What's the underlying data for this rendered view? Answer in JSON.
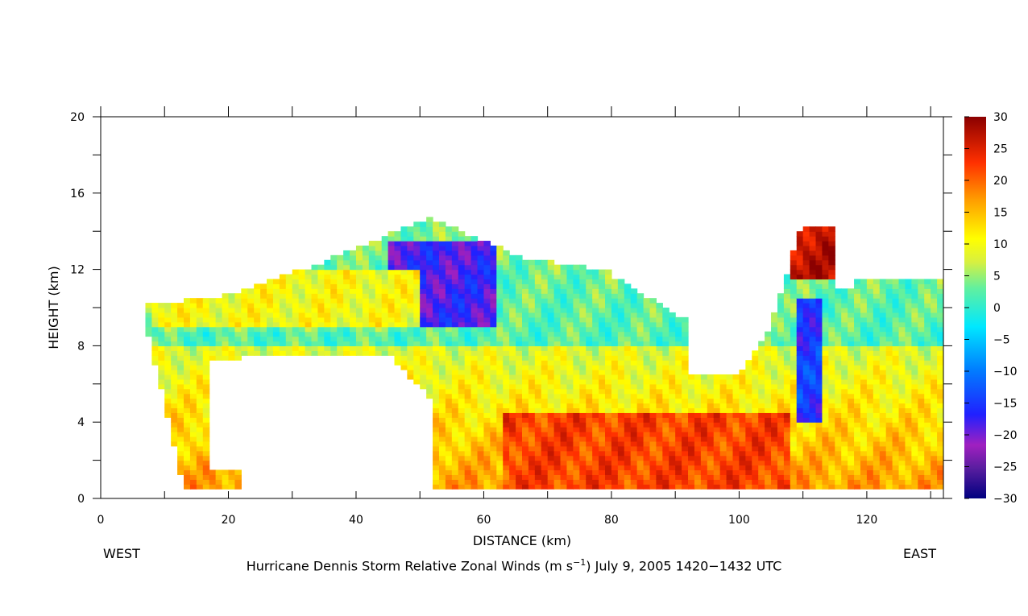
{
  "chart_data": {
    "type": "heatmap",
    "title": "Hurricane Dennis Storm Relative Zonal Winds (m s⁻¹) July 9, 2005 1420–1432 UTC",
    "title_parts": {
      "before": "Hurricane Dennis Storm Relative Zonal Winds (m s",
      "sup": "−1",
      "after": ") July 9, 2005 1420−1432 UTC"
    },
    "xlabel": "DISTANCE (km)",
    "ylabel": "HEIGHT (km)",
    "xlim": [
      0,
      132
    ],
    "ylim": [
      0,
      20
    ],
    "x_ticks": [
      "0",
      "20",
      "40",
      "60",
      "80",
      "100",
      "120"
    ],
    "y_ticks": [
      "0",
      "4",
      "8",
      "12",
      "16",
      "20"
    ],
    "west_label": "WEST",
    "east_label": "EAST",
    "colorbar": {
      "range": [
        -30,
        30
      ],
      "ticks": [
        "30",
        "25",
        "20",
        "15",
        "10",
        "5",
        "0",
        "−5",
        "−10",
        "−15",
        "−20",
        "−25",
        "−30"
      ],
      "colormap": "jet"
    },
    "features": [
      {
        "description": "easterly core (blue) aloft",
        "x_range": [
          45,
          62
        ],
        "z_range": [
          9,
          13.5
        ],
        "value": -18
      },
      {
        "description": "westerly (red) low level jet",
        "x_range": [
          63,
          108
        ],
        "z_range": [
          0.5,
          4.5
        ],
        "value": 22
      },
      {
        "description": "eyewall westerly maximum",
        "x_range": [
          108,
          115
        ],
        "z_range": [
          11.5,
          14.5
        ],
        "value": 27
      },
      {
        "description": "narrow easterly column in eyewall",
        "x_range": [
          109,
          113
        ],
        "z_range": [
          4,
          10.5
        ],
        "value": -15
      },
      {
        "description": "westerly band aloft (yellow)",
        "x_range": [
          8,
          50
        ],
        "z_range": [
          9,
          12
        ],
        "value": 10
      }
    ]
  }
}
